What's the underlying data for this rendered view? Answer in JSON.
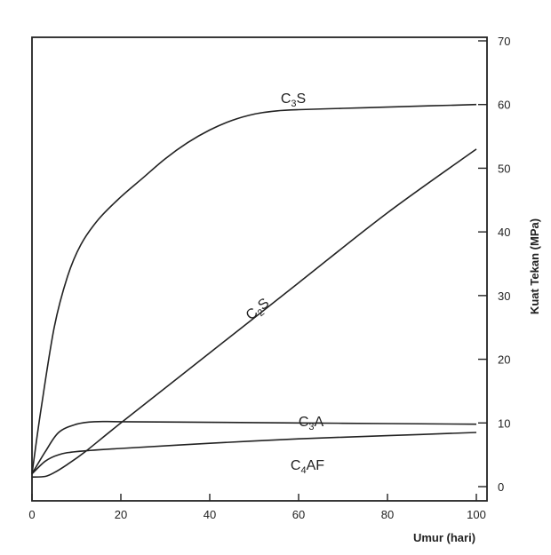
{
  "chart_data": {
    "type": "line",
    "title": "",
    "xlabel": "Umur (hari)",
    "ylabel": "Kuat Tekan (MPa)",
    "xlim": [
      0,
      100
    ],
    "ylim": [
      0,
      70
    ],
    "x_ticks": [
      "0",
      "20",
      "40",
      "60",
      "80",
      "100"
    ],
    "y_ticks": [
      "0",
      "10",
      "20",
      "30",
      "40",
      "50",
      "60",
      "70"
    ],
    "grid": false,
    "y_axis_side": "right",
    "line_color": "#222222",
    "series": [
      {
        "name": "C3S",
        "label_main": "C",
        "label_sub": "3",
        "label_tail": "S",
        "x": [
          0,
          2,
          5,
          8,
          11,
          15,
          20,
          25,
          30,
          35,
          40,
          45,
          50,
          55,
          60,
          70,
          80,
          90,
          100
        ],
        "y": [
          2,
          12,
          25,
          33,
          38,
          42,
          45.5,
          48.5,
          51.5,
          54,
          56,
          57.5,
          58.5,
          59,
          59.2,
          59.4,
          59.6,
          59.8,
          60
        ]
      },
      {
        "name": "C2S",
        "label_main": "C",
        "label_sub": "2",
        "label_tail": "S",
        "x": [
          0,
          3,
          5,
          8,
          12,
          20,
          40,
          60,
          80,
          100
        ],
        "y": [
          1.5,
          1.6,
          2.2,
          3.5,
          5.5,
          10,
          21,
          32,
          43,
          53
        ]
      },
      {
        "name": "C3A",
        "label_main": "C",
        "label_sub": "3",
        "label_tail": "A",
        "x": [
          0,
          3,
          6,
          10,
          14,
          20,
          40,
          60,
          80,
          100
        ],
        "y": [
          2,
          5.5,
          8.5,
          9.8,
          10.2,
          10.2,
          10.1,
          10,
          9.9,
          9.8
        ]
      },
      {
        "name": "C4AF",
        "label_main": "C",
        "label_sub": "4",
        "label_tail": "AF",
        "x": [
          0,
          3,
          6,
          10,
          20,
          40,
          60,
          80,
          100
        ],
        "y": [
          2,
          4,
          5,
          5.5,
          6,
          6.8,
          7.5,
          8,
          8.5
        ]
      }
    ]
  }
}
